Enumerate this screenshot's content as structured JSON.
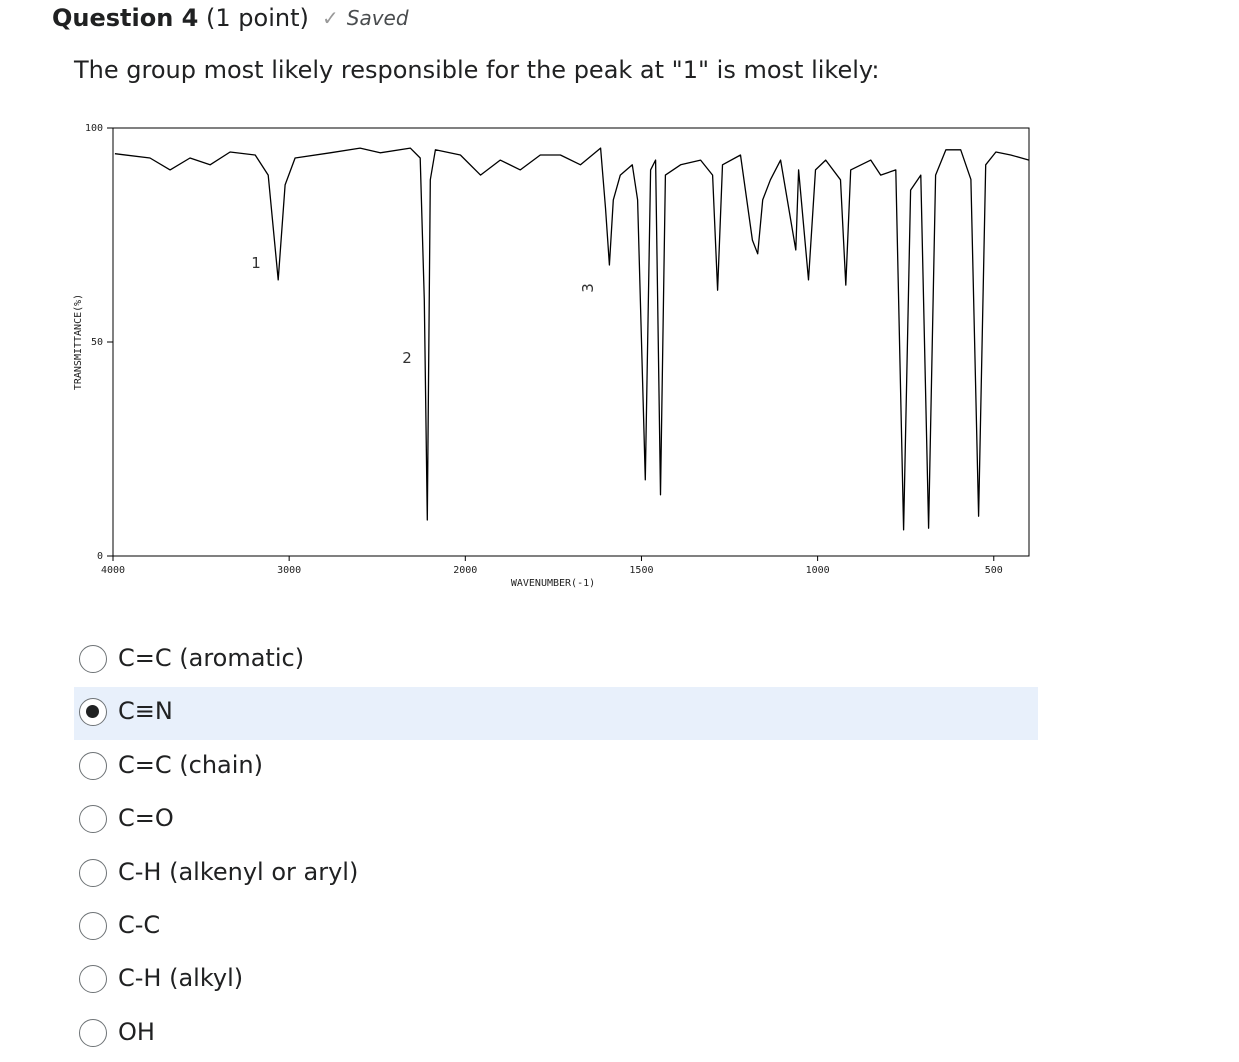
{
  "header": {
    "question": "Question 4",
    "points": "(1 point)",
    "status": "Saved"
  },
  "prompt": "The group most likely responsible for the peak at \"1\" is most likely:",
  "chart_data": {
    "type": "line",
    "x_label": "WAVENUMBER(-1)",
    "y_label": "TRANSMITTANCE(%)",
    "xlim": [
      4000,
      400
    ],
    "xbreak": 2000,
    "ylim": [
      0,
      100
    ],
    "xticks": [
      4000,
      3000,
      2000,
      1500,
      1000,
      500
    ],
    "yticks": [
      0,
      50,
      100
    ],
    "annotations": [
      "1",
      "2",
      "3"
    ],
    "series": [
      {
        "color": "#000000",
        "x": [
          3989,
          3790,
          3676,
          3563,
          3449,
          3335,
          3193,
          3119,
          3062,
          3023,
          2966,
          2767,
          2597,
          2483,
          2312,
          2256,
          2233,
          2216,
          2199,
          2170,
          2028,
          1957,
          1901,
          1844,
          1787,
          1730,
          1673,
          1616,
          1602,
          1591,
          1580,
          1560,
          1526,
          1511,
          1489,
          1474,
          1460,
          1446,
          1432,
          1389,
          1332,
          1298,
          1284,
          1270,
          1219,
          1185,
          1170,
          1156,
          1134,
          1105,
          1062,
          1054,
          1026,
          1006,
          977,
          935,
          920,
          906,
          849,
          821,
          778,
          756,
          736,
          707,
          685,
          665,
          636,
          594,
          565,
          543,
          523,
          494,
          452,
          400
        ],
        "values": [
          94,
          93,
          90.2,
          93,
          91.4,
          94.4,
          93.7,
          89,
          64.5,
          86.7,
          93,
          94.2,
          95.3,
          94.2,
          95.3,
          93,
          59.8,
          8.4,
          87.9,
          94.9,
          93.7,
          89,
          92.5,
          90.2,
          93.7,
          93.7,
          91.4,
          95.3,
          81.3,
          68,
          83.2,
          89,
          91.4,
          83.2,
          17.8,
          90.2,
          92.5,
          14.3,
          89,
          91.4,
          92.5,
          89,
          62.1,
          91.4,
          93.7,
          73.8,
          70.6,
          83.2,
          87.9,
          92.5,
          71.5,
          90.2,
          64.5,
          90.2,
          92.5,
          87.9,
          63.3,
          90.2,
          92.5,
          89,
          90.2,
          6.1,
          85.5,
          89,
          6.5,
          89,
          94.9,
          94.9,
          88,
          9.3,
          91.4,
          94.4,
          93.7,
          92.5
        ]
      }
    ]
  },
  "options": [
    "C=C (aromatic)",
    "C≡N",
    "C=C (chain)",
    "C=O",
    "C-H (alkenyl or aryl)",
    "C-C",
    "C-H (alkyl)",
    "OH"
  ],
  "selected": 1
}
